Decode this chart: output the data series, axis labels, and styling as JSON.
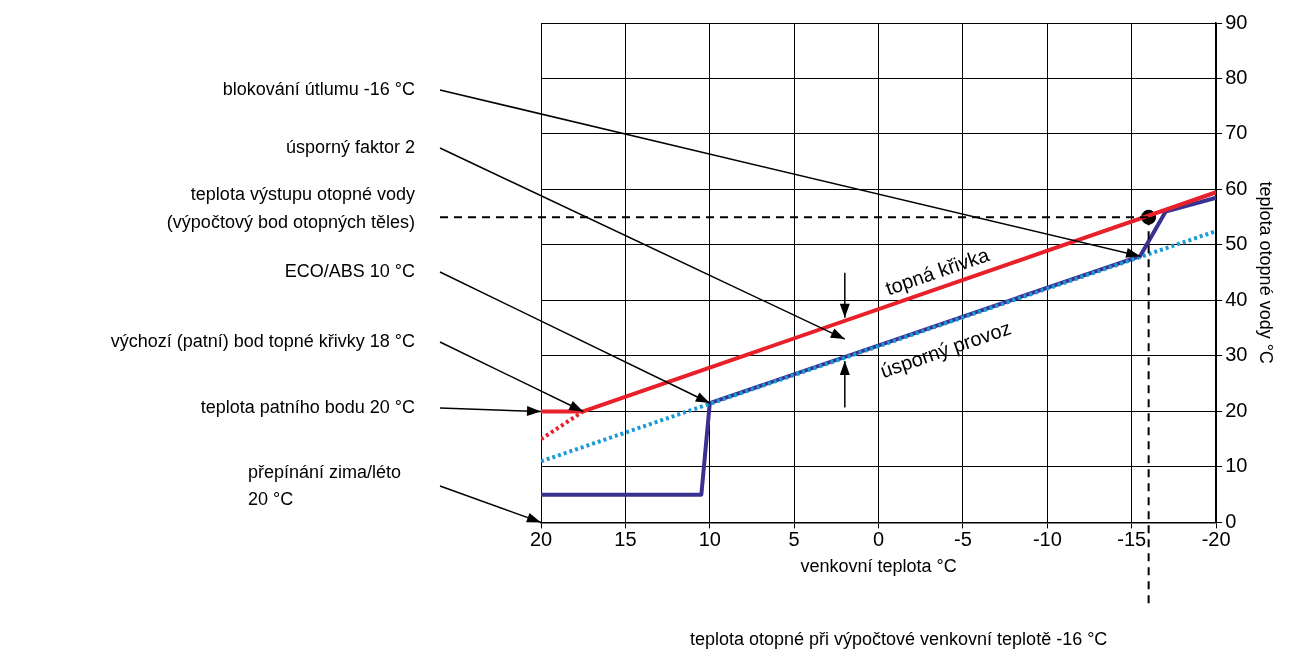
{
  "chart_data": {
    "type": "line",
    "xlabel": "venkovní teplota °C",
    "ylabel": "teplota otopné vody °C",
    "xlim": [
      20,
      -20
    ],
    "xticks": [
      20,
      15,
      10,
      5,
      0,
      -5,
      -10,
      -15,
      -20
    ],
    "ylim": [
      0,
      90
    ],
    "yticks": [
      0,
      10,
      20,
      30,
      40,
      50,
      60,
      70,
      80,
      90
    ],
    "grid": true,
    "legend": false,
    "marker": "none",
    "series": [
      {
        "color": "#e8202a",
        "x": [
          20,
          17.5,
          -20
        ],
        "values": [
          20,
          20,
          59.5
        ],
        "line_style": "solid"
      },
      {
        "color": "#e8202a",
        "x": [
          20,
          17.5
        ],
        "values": [
          15,
          20
        ],
        "line_style": "dotted"
      },
      {
        "color": "#1a9ad6",
        "x": [
          20,
          -20
        ],
        "values": [
          11,
          52.5
        ],
        "line_style": "dotted"
      },
      {
        "color": "#3a3190",
        "x": [
          20,
          10.5,
          10,
          -15.5,
          -17,
          -20
        ],
        "values": [
          5,
          5,
          21.5,
          48,
          56,
          58.5
        ],
        "line_style": "solid"
      },
      {
        "type": "scatter",
        "color": "#000000",
        "x": [
          -16
        ],
        "values": [
          55
        ],
        "marker": "circle"
      }
    ],
    "ref_lines": [
      {
        "axis": "y",
        "value": 55,
        "label": "teplota výstupu otopné vody\n(výpočtový bod otopných těles)",
        "color": "#000000",
        "line_style": "dashed"
      },
      {
        "axis": "x",
        "value": -16,
        "label": "teplota otopné při výpočtové venkovní teplotě -16 °C",
        "color": "#000000",
        "line_style": "dashed"
      }
    ],
    "annotations": [
      "blokování útlumu -16 °C",
      "úsporný faktor 2",
      "ECO/ABS 10 °C",
      "výchozí (patní) bod topné křivky 18 °C",
      "teplota patního bodu 20 °C",
      "přepínání zima/léto\n20 °C",
      "topná křivka",
      "úsporný provoz"
    ]
  }
}
